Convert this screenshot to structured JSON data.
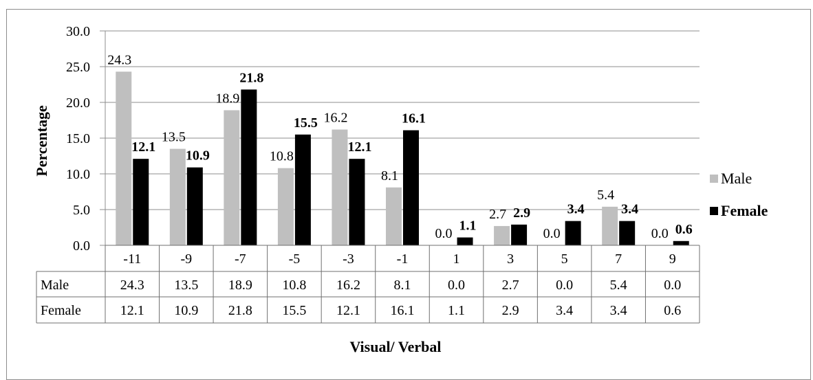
{
  "chart_data": {
    "type": "bar",
    "categories": [
      "-11",
      "-9",
      "-7",
      "-5",
      "-3",
      "-1",
      "1",
      "3",
      "5",
      "7",
      "9"
    ],
    "series": [
      {
        "name": "Male",
        "color": "#bfbfbf",
        "values": [
          24.3,
          13.5,
          18.9,
          10.8,
          16.2,
          8.1,
          0.0,
          2.7,
          0.0,
          5.4,
          0.0
        ],
        "labels_bold": false
      },
      {
        "name": "Female",
        "color": "#000000",
        "values": [
          12.1,
          10.9,
          21.8,
          15.5,
          12.1,
          16.1,
          1.1,
          2.9,
          3.4,
          3.4,
          0.6
        ],
        "labels_bold": true
      }
    ],
    "title": "",
    "xlabel": "Visual/ Verbal",
    "ylabel": "Percentage",
    "ylim": [
      0,
      30
    ],
    "yticks": [
      "0.0",
      "5.0",
      "10.0",
      "15.0",
      "20.0",
      "25.0",
      "30.0"
    ],
    "grid": true,
    "legend_position": "right",
    "data_table": true
  }
}
